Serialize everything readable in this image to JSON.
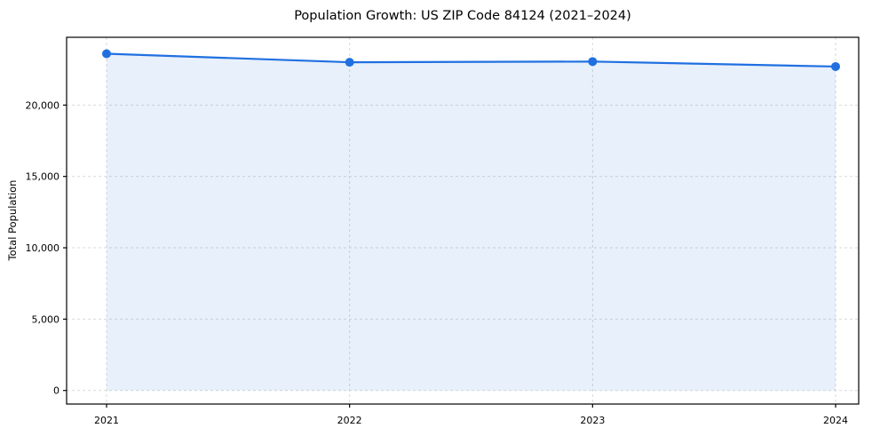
{
  "chart_data": {
    "type": "line",
    "title": "Population Growth: US ZIP Code 84124 (2021–2024)",
    "xlabel": "",
    "ylabel": "Total Population",
    "categories": [
      "2021",
      "2022",
      "2023",
      "2024"
    ],
    "series": [
      {
        "name": "Total Population",
        "values": [
          23600,
          23000,
          23050,
          22700
        ]
      }
    ],
    "ylim": [
      -950,
      24750
    ],
    "yticks": [
      0,
      5000,
      10000,
      15000,
      20000
    ],
    "ytick_labels": [
      "0",
      "5,000",
      "10,000",
      "15,000",
      "20,000"
    ],
    "grid": true,
    "legend": "none",
    "colors": {
      "line": "#2070e0",
      "marker": "#2070e0",
      "fill": "#2070e0",
      "grid": "#d9d9d9",
      "axis": "#000000"
    },
    "fill_opacity": 0.1,
    "fill_baseline": 0
  }
}
